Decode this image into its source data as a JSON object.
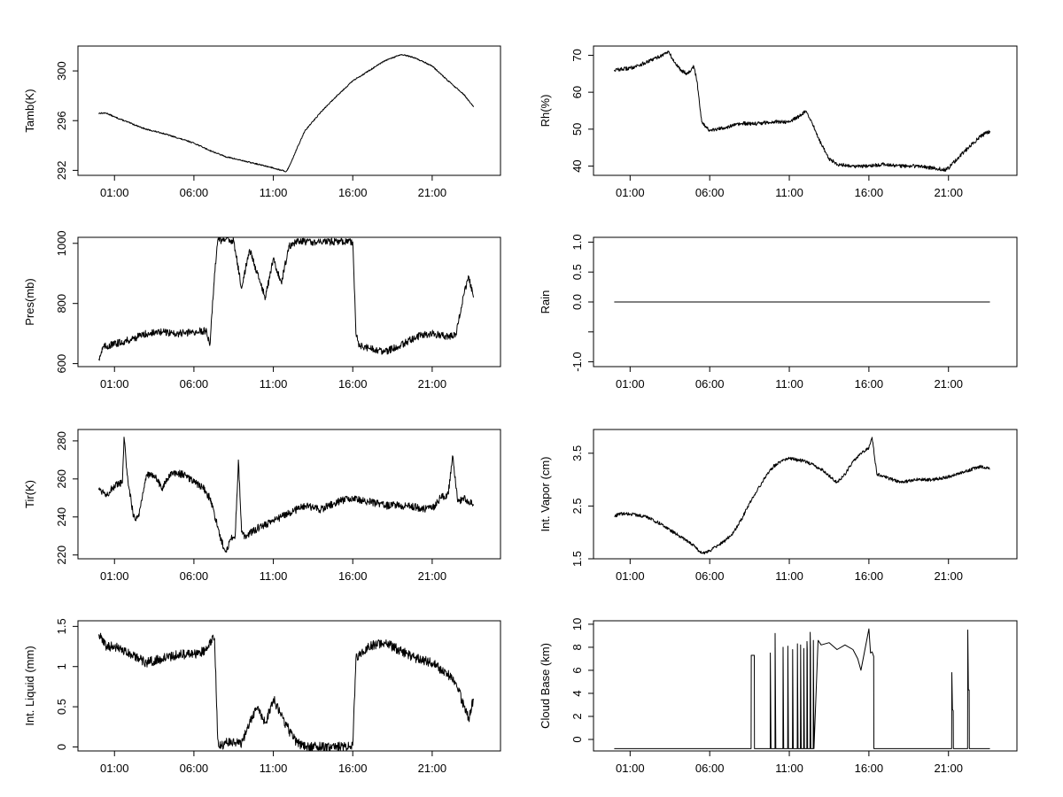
{
  "chart_data": [
    {
      "id": "tamb",
      "type": "line",
      "ylabel": "Tamb(K)",
      "xlim": [
        -1.3,
        25.3
      ],
      "ylim": [
        291.6,
        302.0
      ],
      "yticks": [
        292,
        296,
        300
      ],
      "xticks": [
        "01:00",
        "06:00",
        "11:00",
        "16:00",
        "21:00"
      ],
      "xtick_values": [
        1,
        6,
        11,
        16,
        21
      ],
      "noise": 0.05,
      "series": [
        {
          "x": [
            0,
            0.5,
            1,
            2,
            3,
            4,
            5,
            6,
            7,
            8,
            9,
            10,
            11,
            11.8,
            12,
            12.5,
            13,
            14,
            15,
            16,
            17,
            18,
            19,
            19.5,
            20,
            21,
            22,
            23,
            23.6
          ],
          "y": [
            296.6,
            296.6,
            296.3,
            295.8,
            295.3,
            295.0,
            294.6,
            294.2,
            293.6,
            293.1,
            292.8,
            292.5,
            292.2,
            291.9,
            292.3,
            293.8,
            295.2,
            296.7,
            298.0,
            299.2,
            300.0,
            300.8,
            301.3,
            301.2,
            301.0,
            300.4,
            299.2,
            298.1,
            297.1
          ]
        }
      ]
    },
    {
      "id": "rh",
      "type": "line",
      "ylabel": "Rh(%)",
      "xlim": [
        -1.3,
        25.3
      ],
      "ylim": [
        37.5,
        72.5
      ],
      "yticks": [
        40,
        50,
        60,
        70
      ],
      "xticks": [
        "01:00",
        "06:00",
        "11:00",
        "16:00",
        "21:00"
      ],
      "xtick_values": [
        1,
        6,
        11,
        16,
        21
      ],
      "noise": 0.5,
      "series": [
        {
          "x": [
            0,
            1,
            2,
            3,
            3.4,
            3.8,
            4.2,
            4.6,
            5.0,
            5.2,
            5.5,
            6,
            7,
            8,
            9,
            10,
            11,
            11.8,
            12,
            12.5,
            13,
            13.5,
            14,
            15,
            16,
            17,
            18,
            19,
            20,
            20.8,
            21,
            22,
            23,
            23.6
          ],
          "y": [
            66,
            66.5,
            68,
            70,
            71,
            68,
            66,
            65,
            67,
            63,
            52,
            49.5,
            50.5,
            51.5,
            51.5,
            52,
            52,
            54,
            55,
            51,
            46,
            42,
            40.5,
            40,
            40,
            40.5,
            40,
            40,
            39.5,
            39,
            39.5,
            44,
            48,
            49.5
          ]
        }
      ]
    },
    {
      "id": "pres",
      "type": "line",
      "ylabel": "Pres(mb)",
      "xlim": [
        -1.3,
        25.3
      ],
      "ylim": [
        590,
        1020
      ],
      "yticks": [
        600,
        800,
        1000
      ],
      "xticks": [
        "01:00",
        "06:00",
        "11:00",
        "16:00",
        "21:00"
      ],
      "xtick_values": [
        1,
        6,
        11,
        16,
        21
      ],
      "noise": 12,
      "series": [
        {
          "x": [
            0,
            0.3,
            1,
            2,
            3,
            4,
            5,
            6,
            6.8,
            7.0,
            7.3,
            7.5,
            8.5,
            9.0,
            9.5,
            10,
            10.5,
            11,
            11.5,
            12,
            12.5,
            13,
            14,
            15,
            16.0,
            16.2,
            16.4,
            17,
            18,
            19,
            20,
            21,
            22,
            22.5,
            23,
            23.3,
            23.6
          ],
          "y": [
            615,
            655,
            665,
            680,
            700,
            705,
            700,
            705,
            710,
            660,
            900,
            1010,
            1010,
            850,
            980,
            900,
            820,
            950,
            870,
            990,
            1005,
            1005,
            1005,
            1005,
            1005,
            700,
            660,
            650,
            640,
            660,
            690,
            700,
            690,
            700,
            830,
            890,
            820
          ]
        }
      ]
    },
    {
      "id": "rain",
      "type": "line",
      "ylabel": "Rain",
      "xlim": [
        -1.3,
        25.3
      ],
      "ylim": [
        -1.08,
        1.08
      ],
      "yticks": [
        -1.0,
        -0.5,
        0.0,
        0.5,
        1.0
      ],
      "ytick_labels": [
        "-1.0",
        "",
        "0.0",
        "0.5",
        "1.0"
      ],
      "xticks": [
        "01:00",
        "06:00",
        "11:00",
        "16:00",
        "21:00"
      ],
      "xtick_values": [
        1,
        6,
        11,
        16,
        21
      ],
      "noise": 0,
      "series": [
        {
          "x": [
            0,
            23.6
          ],
          "y": [
            0,
            0
          ]
        }
      ]
    },
    {
      "id": "tir",
      "type": "line",
      "ylabel": "Tir(K)",
      "xlim": [
        -1.3,
        25.3
      ],
      "ylim": [
        218,
        286
      ],
      "yticks": [
        220,
        240,
        260,
        280
      ],
      "xticks": [
        "01:00",
        "06:00",
        "11:00",
        "16:00",
        "21:00"
      ],
      "xtick_values": [
        1,
        6,
        11,
        16,
        21
      ],
      "noise": 2,
      "series": [
        {
          "x": [
            0,
            0.5,
            1,
            1.5,
            1.6,
            1.8,
            2.2,
            2.5,
            3,
            3.5,
            4,
            4.5,
            5,
            5.5,
            6,
            6.5,
            7,
            7.5,
            7.7,
            8,
            8.3,
            8.6,
            8.8,
            9.0,
            9.2,
            10,
            11,
            12,
            13,
            14,
            15,
            16,
            17,
            18,
            19,
            20,
            21,
            21.5,
            22,
            22.3,
            22.6,
            23,
            23.6
          ],
          "y": [
            255,
            252,
            256,
            258,
            282,
            262,
            240,
            240,
            262,
            262,
            255,
            262,
            263,
            262,
            258,
            256,
            250,
            235,
            228,
            222,
            228,
            230,
            270,
            232,
            230,
            234,
            238,
            242,
            246,
            244,
            248,
            250,
            248,
            246,
            246,
            245,
            244,
            250,
            252,
            272,
            248,
            250,
            246
          ]
        }
      ]
    },
    {
      "id": "vapor",
      "type": "line",
      "ylabel": "Int. Vapor (cm)",
      "xlim": [
        -1.3,
        25.3
      ],
      "ylim": [
        1.5,
        3.95
      ],
      "yticks": [
        1.5,
        2.5,
        3.5
      ],
      "xticks": [
        "01:00",
        "06:00",
        "11:00",
        "16:00",
        "21:00"
      ],
      "xtick_values": [
        1,
        6,
        11,
        16,
        21
      ],
      "noise": 0.03,
      "series": [
        {
          "x": [
            0,
            0.3,
            1,
            2,
            3,
            4,
            5,
            5.5,
            6,
            7,
            7.5,
            8,
            8.5,
            9,
            9.5,
            10,
            10.5,
            11,
            12,
            13,
            14,
            14.5,
            15,
            15.5,
            16,
            16.2,
            16.5,
            17,
            18,
            19,
            20,
            21,
            22,
            23,
            23.6
          ],
          "y": [
            2.3,
            2.35,
            2.35,
            2.3,
            2.15,
            1.95,
            1.75,
            1.6,
            1.65,
            1.85,
            2.0,
            2.25,
            2.55,
            2.8,
            3.05,
            3.25,
            3.35,
            3.4,
            3.35,
            3.2,
            2.95,
            3.1,
            3.35,
            3.5,
            3.6,
            3.8,
            3.1,
            3.05,
            2.95,
            3.0,
            3.0,
            3.05,
            3.15,
            3.25,
            3.2
          ]
        }
      ]
    },
    {
      "id": "liquid",
      "type": "line",
      "ylabel": "Int. Liquid (mm)",
      "xlim": [
        -1.3,
        25.3
      ],
      "ylim": [
        -0.05,
        1.57
      ],
      "yticks": [
        0.0,
        0.5,
        1.0,
        1.5
      ],
      "xticks": [
        "01:00",
        "06:00",
        "11:00",
        "16:00",
        "21:00"
      ],
      "xtick_values": [
        1,
        6,
        11,
        16,
        21
      ],
      "noise": 0.06,
      "series": [
        {
          "x": [
            0,
            0.5,
            1,
            2,
            3,
            4,
            5,
            6,
            6.8,
            7.0,
            7.3,
            7.5,
            7.6,
            8,
            9,
            9.5,
            10,
            10.5,
            11,
            11.5,
            12,
            12.5,
            13,
            14,
            15,
            15.8,
            16.0,
            16.2,
            17,
            18,
            19,
            20,
            21,
            22,
            22.5,
            23,
            23.3,
            23.6
          ],
          "y": [
            1.4,
            1.25,
            1.25,
            1.15,
            1.05,
            1.1,
            1.15,
            1.15,
            1.2,
            1.3,
            1.35,
            0.1,
            0.0,
            0.05,
            0.05,
            0.3,
            0.5,
            0.3,
            0.6,
            0.4,
            0.2,
            0.05,
            0.0,
            0.0,
            0.0,
            0.0,
            0.02,
            1.1,
            1.25,
            1.3,
            1.2,
            1.1,
            1.05,
            0.9,
            0.8,
            0.5,
            0.35,
            0.6
          ]
        }
      ]
    },
    {
      "id": "cloud",
      "type": "line",
      "ylabel": "Cloud Base (km)",
      "xlim": [
        -1.3,
        25.3
      ],
      "ylim": [
        -1.0,
        10.3
      ],
      "yticks": [
        0,
        2,
        4,
        6,
        8,
        10
      ],
      "xticks": [
        "01:00",
        "06:00",
        "11:00",
        "16:00",
        "21:00"
      ],
      "xtick_values": [
        1,
        6,
        11,
        16,
        21
      ],
      "noise": 0,
      "series": [
        {
          "x": [
            0,
            8.6,
            8.61,
            8.8,
            8.81,
            9.8,
            9.81,
            9.85,
            10.1,
            10.11,
            10.15,
            10.6,
            10.61,
            10.65,
            10.9,
            10.91,
            10.95,
            11.2,
            11.21,
            11.25,
            11.5,
            11.51,
            11.55,
            11.7,
            11.71,
            11.75,
            11.9,
            11.91,
            11.95,
            12.1,
            12.11,
            12.13,
            12.15,
            12.3,
            12.31,
            12.33,
            12.35,
            12.5,
            12.51,
            12.55,
            12.8,
            12.81,
            13,
            13.5,
            14,
            14.5,
            15,
            15.3,
            15.5,
            16,
            16.1,
            16.2,
            16.3,
            16.31,
            21.2,
            21.21,
            21.25,
            21.3,
            21.31,
            22.2,
            22.21,
            22.25,
            22.3,
            22.31,
            23.6
          ],
          "y": [
            -0.8,
            -0.8,
            7.3,
            7.3,
            -0.8,
            -0.8,
            7.5,
            -0.8,
            -0.8,
            9.2,
            -0.8,
            -0.8,
            8.0,
            -0.8,
            -0.8,
            8.1,
            -0.8,
            -0.8,
            7.8,
            -0.8,
            -0.8,
            8.3,
            -0.8,
            -0.8,
            8.2,
            -0.8,
            -0.8,
            7.9,
            -0.8,
            -0.8,
            8.5,
            7.8,
            -0.8,
            -0.8,
            9.3,
            8.0,
            -0.8,
            -0.8,
            8.6,
            -0.8,
            8.4,
            8.6,
            8.2,
            8.4,
            7.8,
            8.2,
            7.8,
            7.0,
            6.0,
            9.6,
            7.5,
            7.6,
            7.2,
            -0.8,
            -0.8,
            5.8,
            2.6,
            2.5,
            -0.8,
            -0.8,
            9.5,
            4.3,
            4.3,
            -0.8,
            -0.8
          ]
        }
      ]
    }
  ]
}
